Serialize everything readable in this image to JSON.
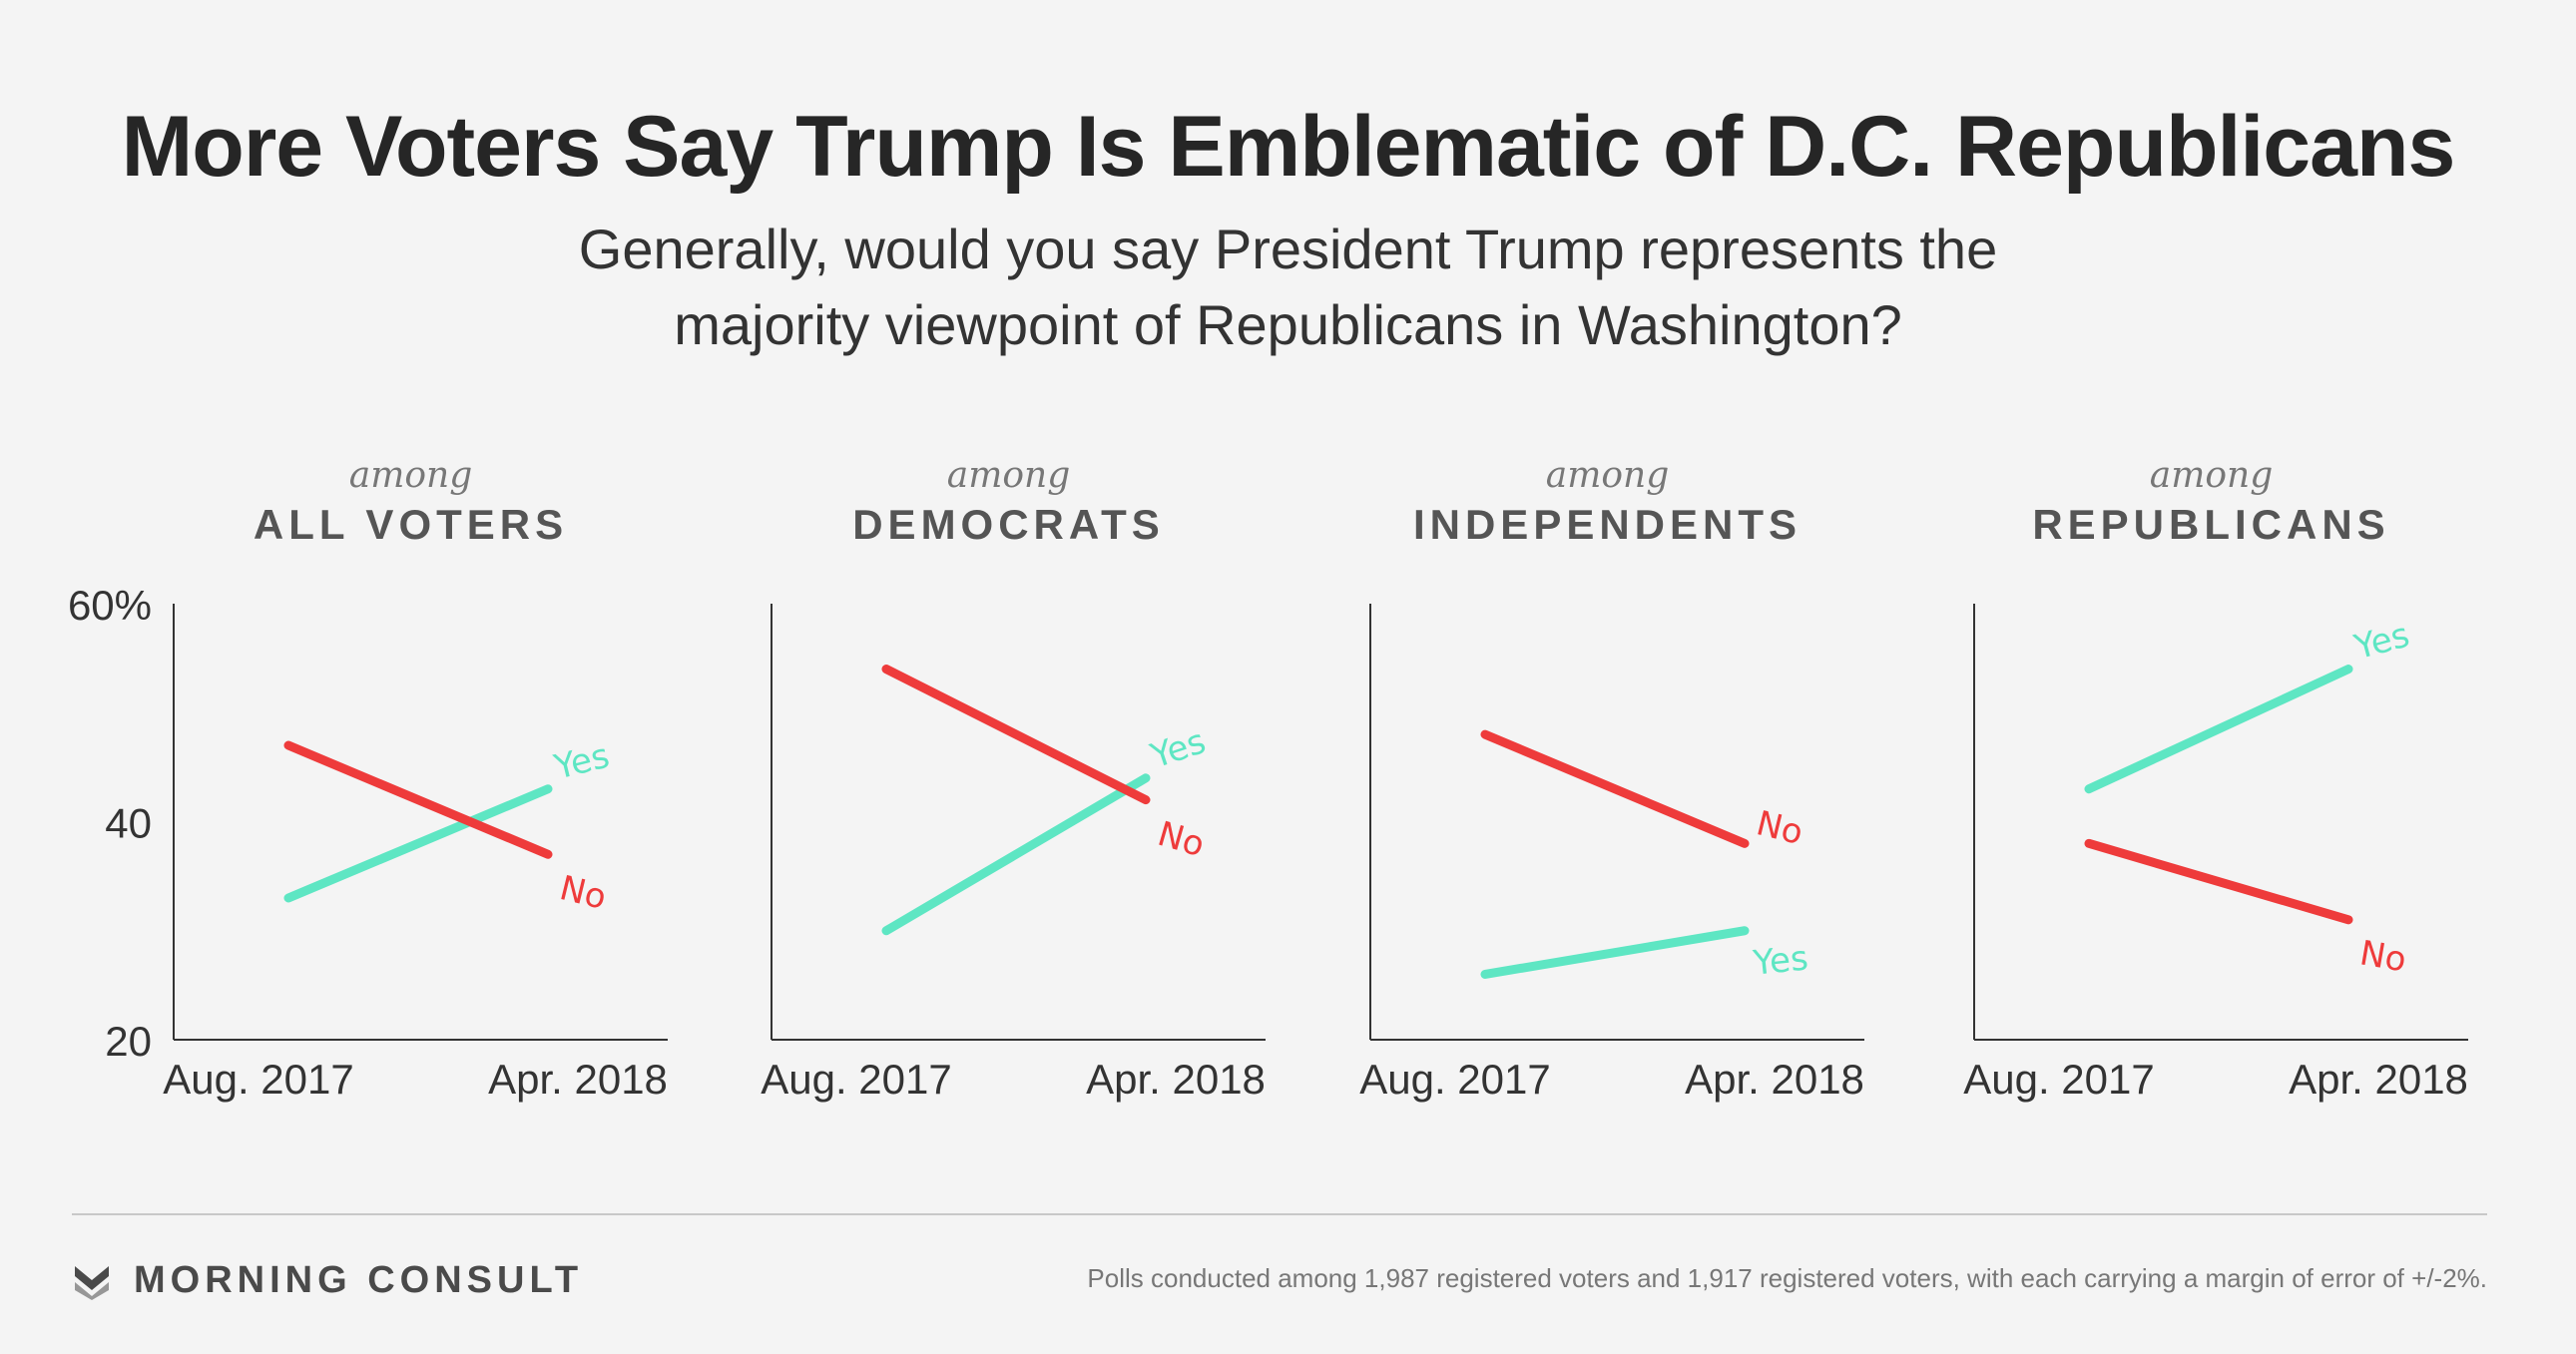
{
  "title": "More Voters Say Trump Is Emblematic of D.C. Republicans",
  "subtitle": {
    "line1": "Generally, would you say President Trump represents the",
    "line2": "majority viewpoint of Republicans in Washington?"
  },
  "colors": {
    "yes": "#5ee6c3",
    "no": "#ee3b3b",
    "axis": "#333333"
  },
  "chart_data": [
    {
      "type": "line",
      "panel_prefix": "among",
      "panel_title": "ALL VOTERS",
      "x": [
        "Aug. 2017",
        "Apr. 2018"
      ],
      "y_ticks": [
        "60%",
        "40",
        "20"
      ],
      "ylim": [
        20,
        60
      ],
      "series": [
        {
          "name": "Yes",
          "values": [
            33,
            43
          ]
        },
        {
          "name": "No",
          "values": [
            47,
            37
          ]
        }
      ]
    },
    {
      "type": "line",
      "panel_prefix": "among",
      "panel_title": "DEMOCRATS",
      "x": [
        "Aug. 2017",
        "Apr. 2018"
      ],
      "ylim": [
        20,
        60
      ],
      "series": [
        {
          "name": "Yes",
          "values": [
            30,
            44
          ]
        },
        {
          "name": "No",
          "values": [
            54,
            42
          ]
        }
      ]
    },
    {
      "type": "line",
      "panel_prefix": "among",
      "panel_title": "INDEPENDENTS",
      "x": [
        "Aug. 2017",
        "Apr. 2018"
      ],
      "ylim": [
        20,
        60
      ],
      "series": [
        {
          "name": "Yes",
          "values": [
            26,
            30
          ]
        },
        {
          "name": "No",
          "values": [
            48,
            38
          ]
        }
      ]
    },
    {
      "type": "line",
      "panel_prefix": "among",
      "panel_title": "REPUBLICANS",
      "x": [
        "Aug. 2017",
        "Apr. 2018"
      ],
      "ylim": [
        20,
        60
      ],
      "series": [
        {
          "name": "Yes",
          "values": [
            43,
            54
          ]
        },
        {
          "name": "No",
          "values": [
            38,
            31
          ]
        }
      ]
    }
  ],
  "footer": {
    "brand": "MORNING CONSULT",
    "source": "Polls conducted among 1,987 registered voters and 1,917 registered voters, with each carrying a margin of error of +/-2%."
  }
}
